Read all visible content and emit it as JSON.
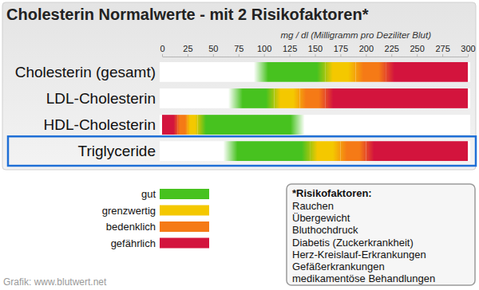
{
  "chart_data": {
    "type": "bar",
    "orientation": "horizontal",
    "title": "Cholesterin Normalwerte - mit 2 Risikofaktoren*",
    "subtitle": "mg / dl (Milligramm pro Deziliter Blut)",
    "categories": [
      "Cholesterin (gesamt)",
      "LDL-Cholesterin",
      "HDL-Cholesterin",
      "Triglyceride"
    ],
    "series": [
      {
        "name": "gut",
        "color": "#47c21f",
        "values": [
          [
            90,
            160
          ],
          [
            65,
            110
          ],
          [
            35,
            140
          ],
          [
            60,
            145
          ]
        ]
      },
      {
        "name": "grenzwertig",
        "color": "#f4c800",
        "values": [
          [
            160,
            190
          ],
          [
            110,
            135
          ],
          [
            25,
            35
          ],
          [
            145,
            175
          ]
        ]
      },
      {
        "name": "bedenklich",
        "color": "#f57a16",
        "values": [
          [
            190,
            220
          ],
          [
            135,
            160
          ],
          [
            15,
            25
          ],
          [
            175,
            200
          ]
        ]
      },
      {
        "name": "gefährlich",
        "color": "#d3143d",
        "values": [
          [
            220,
            300
          ],
          [
            160,
            300
          ],
          [
            0,
            15
          ],
          [
            200,
            300
          ]
        ]
      }
    ],
    "xlim": [
      0,
      300
    ],
    "xticks": [
      0,
      25,
      50,
      75,
      100,
      125,
      150,
      175,
      200,
      225,
      250,
      275,
      300
    ],
    "grid": false,
    "legend": "bottom-left",
    "annotation": {
      "title": "*Risikofaktoren:",
      "items": [
        "Rauchen",
        "Übergewicht",
        "Bluthochdruck",
        "Diabetis (Zuckerkrankheit)",
        "Herz-Kreislauf-Erkrankungen",
        "Gefäßerkrankungen",
        "medikamentöse Behandlungen"
      ]
    },
    "source": "Grafik: www.blutwert.net"
  }
}
